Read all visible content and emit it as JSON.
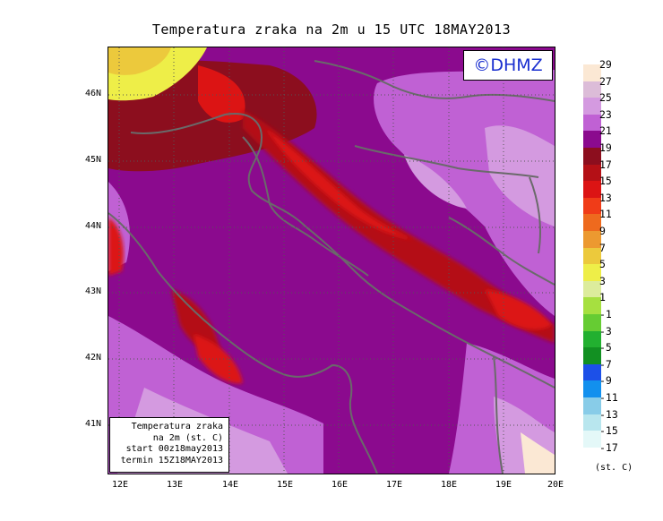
{
  "title": "Temperatura zraka na 2m u 15 UTC 18MAY2013",
  "copyright": "©DHMZ",
  "info_box": {
    "line1": "Temperatura zraka",
    "line2": "na 2m (st. C)",
    "line3": "start 00z18may2013",
    "line4": "termin 15Z18MAY2013"
  },
  "map": {
    "lon_range": [
      11.8,
      20.0
    ],
    "lat_range": [
      40.25,
      46.75
    ],
    "x_ticks": [
      "12E",
      "13E",
      "14E",
      "15E",
      "16E",
      "17E",
      "18E",
      "19E",
      "20E"
    ],
    "y_ticks": [
      "46N",
      "45N",
      "44N",
      "43N",
      "42N",
      "41N"
    ],
    "grid": true
  },
  "legend": {
    "levels": [
      "29",
      "27",
      "25",
      "23",
      "21",
      "19",
      "17",
      "15",
      "13",
      "11",
      "9",
      "7",
      "5",
      "3",
      "1",
      "-1",
      "-3",
      "-5",
      "-7",
      "-9",
      "-11",
      "-13",
      "-15",
      "-17"
    ],
    "colors": [
      "#fbe8d4",
      "#dcbcd8",
      "#d49ae0",
      "#c061d4",
      "#8b0a8e",
      "#8c0e1e",
      "#b41016",
      "#dc1414",
      "#f03c18",
      "#ee6a1e",
      "#ec9930",
      "#ecc93c",
      "#eeee48",
      "#dcec9c",
      "#a6e040",
      "#66cc33",
      "#22b030",
      "#129022",
      "#1c50e8",
      "#1290ee",
      "#88cce8",
      "#b8e6ee",
      "#e4f8f8"
    ],
    "unit": "(st. C)"
  }
}
